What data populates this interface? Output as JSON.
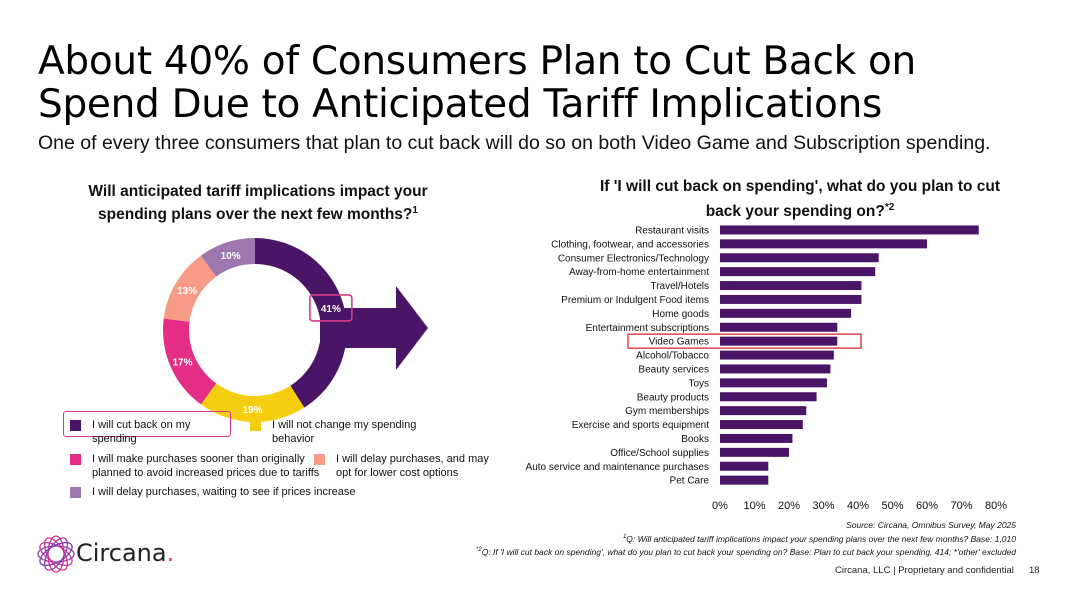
{
  "header": {
    "title": "About 40% of Consumers Plan to Cut Back on Spend Due to Anticipated Tariff Implications",
    "subtitle": "One of every three consumers that plan to cut back will do so on both Video Game and Subscription spending."
  },
  "chart_data": [
    {
      "type": "pie",
      "title": "Will anticipated tariff implications impact your spending plans over the next few months?",
      "title_note": "1",
      "labels": [
        "I will cut back on my spending",
        "I will not change my spending behavior",
        "I will make purchases sooner than originally planned to avoid increased prices due to tariffs",
        "I will delay purchases, and may opt for lower cost options",
        "I will delay purchases, waiting to see if prices increase"
      ],
      "values": [
        41,
        19,
        17,
        13,
        10
      ],
      "value_labels": [
        "41%",
        "19%",
        "17%",
        "13%",
        "10%"
      ],
      "colors": [
        "#4a1566",
        "#f5cf0f",
        "#e42e85",
        "#f79b86",
        "#9c77b0"
      ],
      "highlight": "I will cut back on my spending"
    },
    {
      "type": "bar",
      "orientation": "horizontal",
      "title": "If 'I will cut back on spending', what do you plan to cut back your spending on?",
      "title_note": "*2",
      "categories": [
        "Restaurant visits",
        "Clothing, footwear, and accessories",
        "Consumer Electronics/Technology",
        "Away-from-home entertainment",
        "Travel/Hotels",
        "Premium or Indulgent Food items",
        "Home goods",
        "Entertainment subscriptions",
        "Video Games",
        "Alcohol/Tobacco",
        "Beauty services",
        "Toys",
        "Beauty products",
        "Gym memberships",
        "Exercise and sports equipment",
        "Books",
        "Office/School supplies",
        "Auto service and maintenance purchases",
        "Pet Care"
      ],
      "values": [
        75,
        60,
        46,
        45,
        41,
        41,
        38,
        34,
        34,
        33,
        32,
        31,
        28,
        25,
        24,
        21,
        20,
        14,
        14
      ],
      "xlim": [
        0,
        80
      ],
      "xticks": [
        "0%",
        "10%",
        "20%",
        "30%",
        "40%",
        "50%",
        "60%",
        "70%",
        "80%"
      ],
      "bar_color": "#4a1566",
      "highlight": "Video Games"
    }
  ],
  "footer": {
    "source": "Source: Circana, Omnibus Survey, May 2025",
    "note1_mark": "1",
    "note1": "Q: Will anticipated tariff implications impact your spending plans over the next few months? Base: 1,010",
    "note2_mark": "*2",
    "note2": "Q: If 'I will cut back on spending', what do you plan to cut back your spending on? Base: Plan to cut back your spending, 414; *'other' excluded",
    "company": "Circana, LLC  |  Proprietary and confidential",
    "page_number": "18",
    "logo_text": "Circana",
    "logo_dot": "."
  },
  "colors": {
    "accent": "#4a1566",
    "highlight_box": "#d63a8a",
    "bar_highlight_box": "#e03a3a"
  }
}
